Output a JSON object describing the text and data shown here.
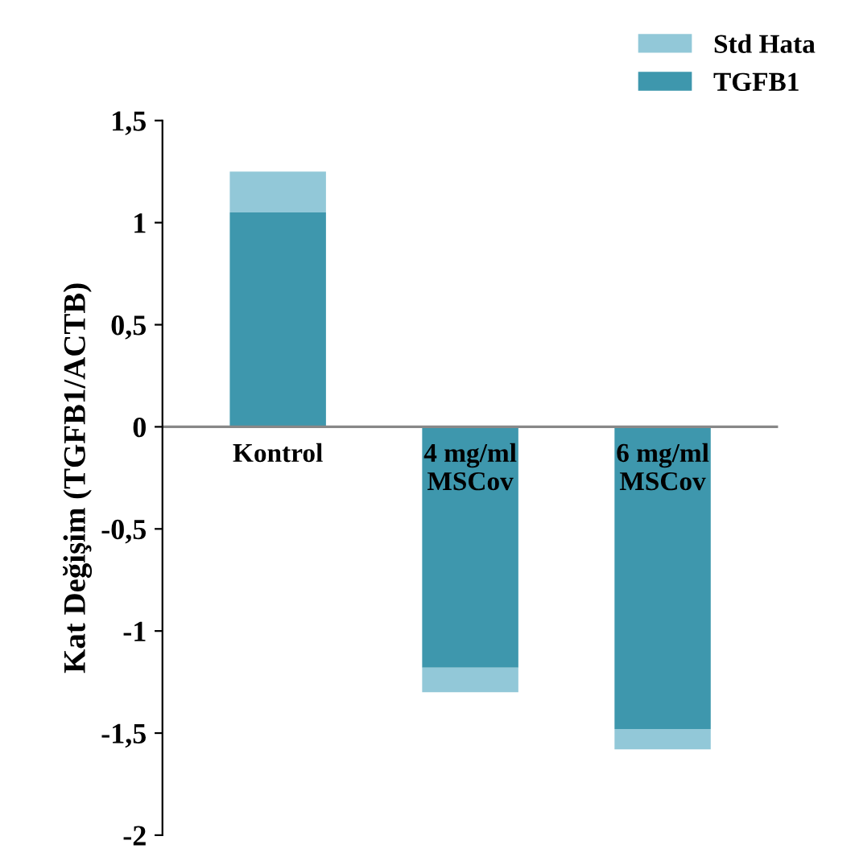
{
  "chart_data": {
    "type": "bar",
    "stacked": true,
    "ylabel": "Kat Değişim (TGFB1/ACTB)",
    "categories": [
      "Kontrol",
      "4 mg/ml\nMSCov",
      "6 mg/ml\nMSCov"
    ],
    "series": [
      {
        "name": "TGFB1",
        "color": "#3e97ad",
        "values": [
          1.05,
          -1.18,
          -1.48
        ]
      },
      {
        "name": "Std Hata",
        "color": "#92c8d8",
        "values": [
          0.2,
          -0.12,
          -0.1
        ]
      }
    ],
    "ylim": [
      -2,
      1.5
    ],
    "yticks": [
      {
        "value": -2,
        "label": "-2"
      },
      {
        "value": -1.5,
        "label": "-1,5"
      },
      {
        "value": -1,
        "label": "-1"
      },
      {
        "value": -0.5,
        "label": "-0,5"
      },
      {
        "value": 0,
        "label": "0"
      },
      {
        "value": 0.5,
        "label": "0,5"
      },
      {
        "value": 1,
        "label": "1"
      },
      {
        "value": 1.5,
        "label": "1,5"
      }
    ],
    "grid": false,
    "legend": "top right"
  }
}
